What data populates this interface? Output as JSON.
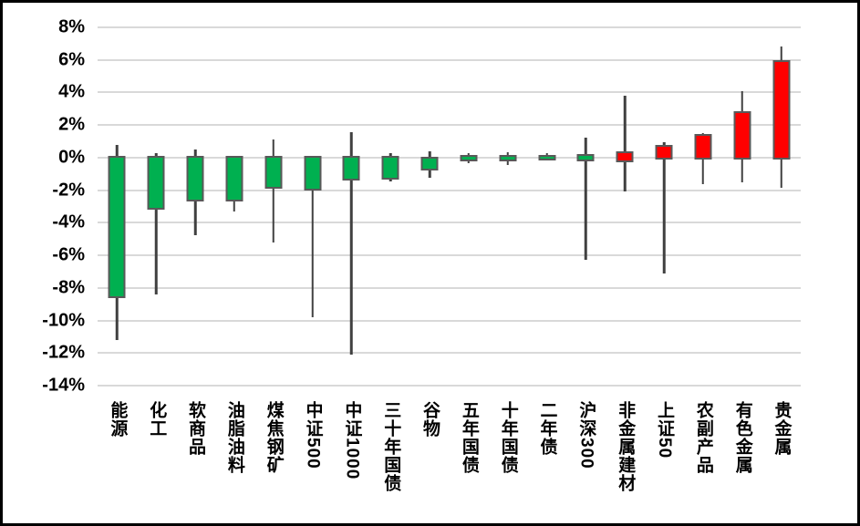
{
  "chart_data": {
    "type": "candlestick",
    "title": "",
    "unit": "%",
    "legend": "none",
    "grid": "horizontal",
    "y_axis": {
      "min": -14,
      "max": 8,
      "step": 2,
      "tick_labels": [
        "8%",
        "6%",
        "4%",
        "2%",
        "0%",
        "-2%",
        "-4%",
        "-6%",
        "-8%",
        "-10%",
        "-12%",
        "-14%"
      ]
    },
    "colors": {
      "up_fill": "#FF0000",
      "down_fill": "#00B050",
      "wick": "#404040",
      "body_border": "#595959",
      "gridline": "#D9D9D9",
      "background": "#FFFFFF",
      "frame": "#000000",
      "text": "#000000"
    },
    "categories": [
      "能源",
      "化工",
      "软商品",
      "油脂油料",
      "煤焦钢矿",
      "中证500",
      "中证1000",
      "三十年国债",
      "谷物",
      "五年国债",
      "十年国债",
      "二年债",
      "沪深300",
      "非金属建材",
      "上证50",
      "农副产品",
      "有色金属",
      "贵金属"
    ],
    "series": [
      {
        "name": "能源",
        "open": 0,
        "close": -8.5,
        "high": 0.8,
        "low": -11.2,
        "direction": "down"
      },
      {
        "name": "化工",
        "open": 0,
        "close": -3.1,
        "high": 0.25,
        "low": -8.4,
        "direction": "down"
      },
      {
        "name": "软商品",
        "open": 0,
        "close": -2.6,
        "high": 0.5,
        "low": -4.75,
        "direction": "down"
      },
      {
        "name": "油脂油料",
        "open": 0,
        "close": -2.6,
        "high": 0,
        "low": -3.3,
        "direction": "down"
      },
      {
        "name": "煤焦钢矿",
        "open": 0,
        "close": -1.8,
        "high": 1.1,
        "low": -5.2,
        "direction": "down"
      },
      {
        "name": "中证500",
        "open": 0,
        "close": -1.9,
        "high": 0,
        "low": -9.8,
        "direction": "down"
      },
      {
        "name": "中证1000",
        "open": 0,
        "close": -1.3,
        "high": 1.55,
        "low": -12.1,
        "direction": "down"
      },
      {
        "name": "三十年国债",
        "open": 0,
        "close": -1.25,
        "high": 0.25,
        "low": -1.45,
        "direction": "down"
      },
      {
        "name": "谷物",
        "open": -0.05,
        "close": -0.7,
        "high": 0.4,
        "low": -1.25,
        "direction": "down"
      },
      {
        "name": "五年国债",
        "open": 0.05,
        "close": -0.1,
        "high": 0.25,
        "low": -0.35,
        "direction": "down"
      },
      {
        "name": "十年国债",
        "open": 0.05,
        "close": -0.1,
        "high": 0.35,
        "low": -0.45,
        "direction": "down"
      },
      {
        "name": "二年债",
        "open": 0.05,
        "close": -0.05,
        "high": 0.3,
        "low": -0.1,
        "direction": "down"
      },
      {
        "name": "沪深300",
        "open": 0.1,
        "close": -0.1,
        "high": 1.25,
        "low": -6.3,
        "direction": "down"
      },
      {
        "name": "非金属建材",
        "open": -0.2,
        "close": 0.3,
        "high": 3.8,
        "low": -2.1,
        "direction": "up"
      },
      {
        "name": "上证50",
        "open": 0,
        "close": 0.65,
        "high": 0.95,
        "low": -7.1,
        "direction": "up"
      },
      {
        "name": "农副产品",
        "open": 0,
        "close": 1.35,
        "high": 1.5,
        "low": -1.65,
        "direction": "up"
      },
      {
        "name": "有色金属",
        "open": 0,
        "close": 2.75,
        "high": 4.1,
        "low": -1.5,
        "direction": "up"
      },
      {
        "name": "贵金属",
        "open": 0,
        "close": 5.9,
        "high": 6.8,
        "low": -1.85,
        "direction": "up"
      }
    ]
  }
}
